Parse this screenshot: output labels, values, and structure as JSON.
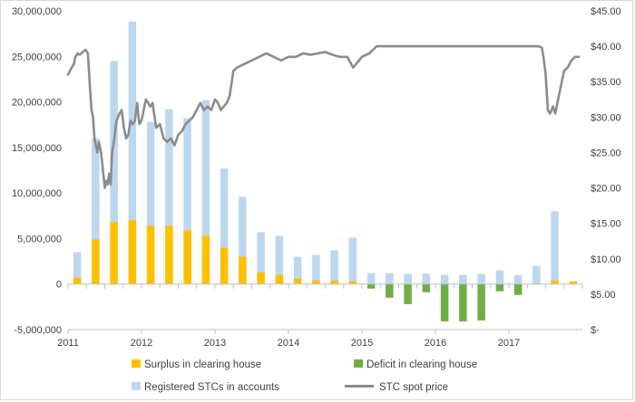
{
  "chart_data": {
    "type": "bar",
    "title": "",
    "xlabel": "",
    "ylabel": "",
    "y_left": {
      "range": [
        -5000000,
        30000000
      ],
      "ticks": [
        -5000000,
        0,
        5000000,
        10000000,
        15000000,
        20000000,
        25000000,
        30000000
      ],
      "tick_labels": [
        "-5,000,000",
        "0",
        "5,000,000",
        "10,000,000",
        "15,000,000",
        "20,000,000",
        "25,000,000",
        "30,000,000"
      ]
    },
    "y_right": {
      "range": [
        0,
        45
      ],
      "ticks": [
        0,
        5,
        10,
        15,
        20,
        25,
        30,
        35,
        40,
        45
      ],
      "tick_labels": [
        "$-",
        "$5.00",
        "$10.00",
        "$15.00",
        "$20.00",
        "$25.00",
        "$30.00",
        "$35.00",
        "$40.00",
        "$45.00"
      ]
    },
    "x_axis": {
      "type": "time",
      "start": 2011.0,
      "end": 2018.0,
      "year_labels": [
        "2011",
        "2012",
        "2013",
        "2014",
        "2015",
        "2016",
        "2017"
      ]
    },
    "bar_periods": [
      "2011 Q1",
      "2011 Q2",
      "2011 Q3",
      "2011 Q4",
      "2012 Q1",
      "2012 Q2",
      "2012 Q3",
      "2012 Q4",
      "2013 Q1",
      "2013 Q2",
      "2013 Q3",
      "2013 Q4",
      "2014 Q1",
      "2014 Q2",
      "2014 Q3",
      "2014 Q4",
      "2015 Q1",
      "2015 Q2",
      "2015 Q3",
      "2015 Q4",
      "2016 Q1",
      "2016 Q2",
      "2016 Q3",
      "2016 Q4",
      "2017 Q1",
      "2017 Q2",
      "2017 Q3",
      "2017 Q4"
    ],
    "series": [
      {
        "name": "Surplus in clearing house",
        "type": "bar",
        "axis": "left",
        "color": "#ffc000",
        "values": [
          700000,
          4900000,
          6800000,
          7000000,
          6400000,
          6400000,
          5900000,
          5300000,
          4000000,
          3000000,
          1300000,
          1000000,
          600000,
          400000,
          400000,
          300000,
          0,
          0,
          0,
          0,
          0,
          0,
          0,
          0,
          0,
          0,
          400000,
          300000
        ]
      },
      {
        "name": "Registered STCs in accounts",
        "type": "bar",
        "axis": "left",
        "color": "#bdd7ee",
        "values": [
          3500000,
          16000000,
          24500000,
          28800000,
          17800000,
          19200000,
          18200000,
          20200000,
          12700000,
          9600000,
          5700000,
          5300000,
          3000000,
          3200000,
          3700000,
          5100000,
          1200000,
          1200000,
          1100000,
          1150000,
          1000000,
          1000000,
          1100000,
          1500000,
          1000000,
          2000000,
          8000000,
          0
        ]
      },
      {
        "name": "Deficit in clearing house",
        "type": "bar",
        "axis": "left",
        "color": "#70ad47",
        "values": [
          0,
          0,
          0,
          0,
          0,
          0,
          0,
          0,
          0,
          0,
          0,
          0,
          0,
          0,
          0,
          0,
          -500000,
          -1500000,
          -2200000,
          -900000,
          -4100000,
          -4100000,
          -4000000,
          -800000,
          -1200000,
          0,
          0,
          0
        ]
      },
      {
        "name": "STC spot price",
        "type": "line",
        "axis": "right",
        "color": "#8c8c8c",
        "x": [
          2011.0,
          2011.05,
          2011.08,
          2011.1,
          2011.13,
          2011.16,
          2011.2,
          2011.24,
          2011.27,
          2011.3,
          2011.32,
          2011.34,
          2011.36,
          2011.38,
          2011.4,
          2011.42,
          2011.45,
          2011.48,
          2011.5,
          2011.52,
          2011.54,
          2011.56,
          2011.58,
          2011.6,
          2011.63,
          2011.66,
          2011.7,
          2011.73,
          2011.76,
          2011.79,
          2011.82,
          2011.85,
          2011.88,
          2011.91,
          2011.94,
          2011.97,
          2012.0,
          2012.03,
          2012.06,
          2012.09,
          2012.12,
          2012.15,
          2012.2,
          2012.25,
          2012.3,
          2012.35,
          2012.4,
          2012.45,
          2012.5,
          2012.55,
          2012.6,
          2012.65,
          2012.7,
          2012.75,
          2012.8,
          2012.85,
          2012.9,
          2012.95,
          2013.0,
          2013.04,
          2013.08,
          2013.12,
          2013.16,
          2013.2,
          2013.25,
          2013.3,
          2013.4,
          2013.5,
          2013.6,
          2013.7,
          2013.8,
          2013.9,
          2014.0,
          2014.1,
          2014.2,
          2014.3,
          2014.4,
          2014.5,
          2014.6,
          2014.7,
          2014.8,
          2014.88,
          2014.92,
          2014.96,
          2015.0,
          2015.1,
          2015.2,
          2015.3,
          2015.4,
          2015.5,
          2015.7,
          2016.0,
          2016.5,
          2017.0,
          2017.3,
          2017.4,
          2017.45,
          2017.47,
          2017.5,
          2017.53,
          2017.56,
          2017.6,
          2017.63,
          2017.66,
          2017.7,
          2017.75,
          2017.8,
          2017.85,
          2017.9,
          2017.95
        ],
        "values": [
          36.0,
          37.0,
          37.5,
          38.5,
          39.0,
          38.8,
          39.2,
          39.5,
          39.0,
          34.0,
          31.0,
          30.0,
          27.0,
          26.0,
          25.0,
          26.5,
          25.0,
          22.0,
          20.0,
          21.0,
          20.5,
          22.0,
          20.5,
          25.0,
          27.0,
          29.5,
          30.5,
          31.0,
          28.5,
          27.0,
          27.5,
          29.5,
          29.0,
          29.5,
          32.0,
          29.0,
          29.5,
          31.0,
          32.5,
          32.0,
          31.5,
          32.0,
          28.5,
          29.0,
          27.0,
          26.5,
          27.0,
          26.0,
          27.5,
          28.0,
          29.0,
          29.5,
          30.0,
          31.0,
          32.0,
          31.0,
          31.5,
          31.0,
          32.5,
          32.0,
          31.0,
          31.5,
          32.0,
          33.0,
          36.5,
          37.0,
          37.5,
          38.0,
          38.5,
          39.0,
          38.5,
          38.0,
          38.5,
          38.5,
          39.0,
          38.8,
          39.0,
          39.2,
          38.8,
          38.5,
          38.5,
          37.0,
          37.5,
          38.0,
          38.5,
          39.0,
          40.0,
          40.0,
          40.0,
          40.0,
          40.0,
          40.0,
          40.0,
          40.0,
          40.0,
          40.0,
          39.8,
          38.5,
          36.0,
          31.0,
          30.5,
          31.5,
          30.5,
          32.0,
          34.0,
          36.5,
          37.0,
          38.0,
          38.5,
          38.5
        ]
      }
    ],
    "legend": {
      "position": "bottom",
      "items": [
        {
          "label": "Surplus in clearing house",
          "kind": "bar",
          "color": "#ffc000"
        },
        {
          "label": "Deficit in clearing house",
          "kind": "bar",
          "color": "#70ad47"
        },
        {
          "label": "Registered STCs in accounts",
          "kind": "bar",
          "color": "#bdd7ee"
        },
        {
          "label": "STC spot price",
          "kind": "line",
          "color": "#8c8c8c"
        }
      ]
    },
    "grid": false
  }
}
